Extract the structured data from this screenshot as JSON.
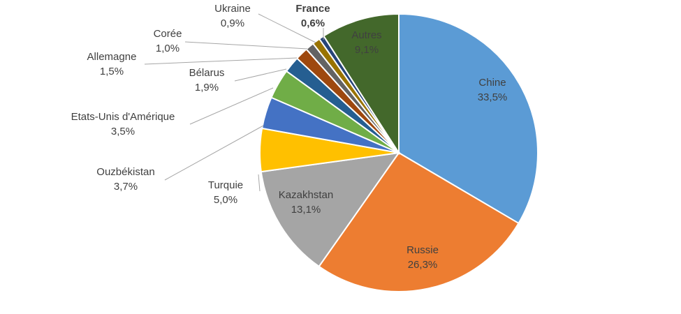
{
  "chart_data": {
    "type": "pie",
    "title": "",
    "slices": [
      {
        "label": "Chine",
        "value": 33.5,
        "display": "33,5%",
        "color": "#5b9bd5"
      },
      {
        "label": "Russie",
        "value": 26.3,
        "display": "26,3%",
        "color": "#ed7d31"
      },
      {
        "label": "Kazakhstan",
        "value": 13.1,
        "display": "13,1%",
        "color": "#a5a5a5"
      },
      {
        "label": "Turquie",
        "value": 5.0,
        "display": "5,0%",
        "color": "#ffc000"
      },
      {
        "label": "Ouzbékistan",
        "value": 3.7,
        "display": "3,7%",
        "color": "#4472c4"
      },
      {
        "label": "Etats-Unis d'Amérique",
        "value": 3.5,
        "display": "3,5%",
        "color": "#70ad47"
      },
      {
        "label": "Bélarus",
        "value": 1.9,
        "display": "1,9%",
        "color": "#255e91"
      },
      {
        "label": "Allemagne",
        "value": 1.5,
        "display": "1,5%",
        "color": "#9e480e"
      },
      {
        "label": "Corée",
        "value": 1.0,
        "display": "1,0%",
        "color": "#636363"
      },
      {
        "label": "Ukraine",
        "value": 0.9,
        "display": "0,9%",
        "color": "#997300"
      },
      {
        "label": "France",
        "value": 0.6,
        "display": "0,6%",
        "color": "#264478",
        "bold": true
      },
      {
        "label": "Autres",
        "value": 9.1,
        "display": "9,1%",
        "color": "#43682b"
      }
    ],
    "legend": "none"
  }
}
